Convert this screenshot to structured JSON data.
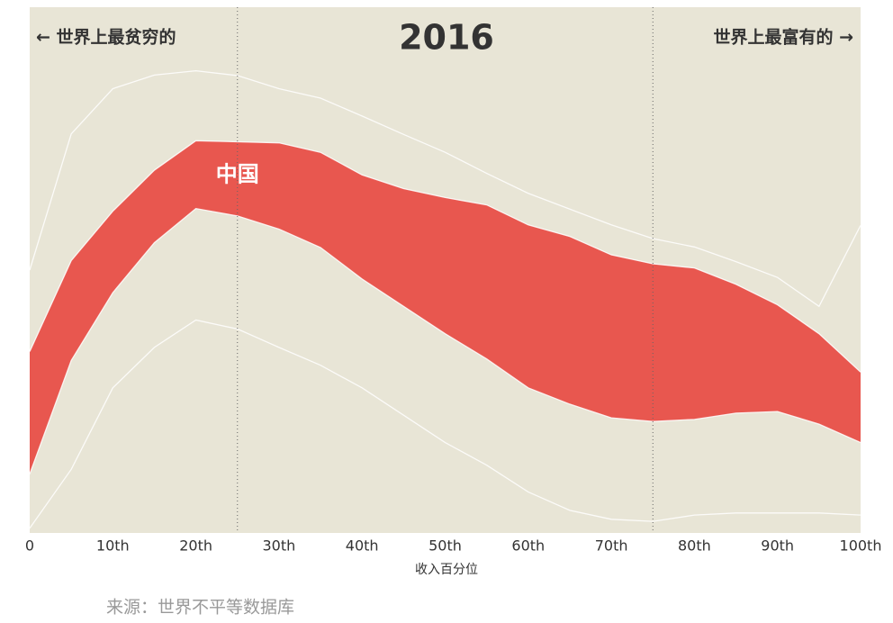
{
  "chart_data": {
    "type": "stacked-area",
    "title": "2016",
    "left_note": "← 世界上最贫穷的",
    "right_note": "世界上最富有的 →",
    "xlabel": "收入百分位",
    "source": "来源：世界不平等数据库",
    "x": [
      0,
      5,
      10,
      15,
      20,
      25,
      30,
      35,
      40,
      45,
      50,
      55,
      60,
      65,
      70,
      75,
      80,
      85,
      90,
      95,
      100
    ],
    "xlim": [
      0,
      100
    ],
    "xticks": [
      0,
      {
        "value": 10,
        "label": "10th"
      },
      {
        "value": 20,
        "label": "20th"
      },
      {
        "value": 30,
        "label": "30th"
      },
      {
        "value": 40,
        "label": "40th"
      },
      {
        "value": 50,
        "label": "50th"
      },
      {
        "value": 60,
        "label": "60th"
      },
      {
        "value": 70,
        "label": "70th"
      },
      {
        "value": 80,
        "label": "80th"
      },
      {
        "value": 90,
        "label": "90th"
      },
      {
        "value": 100,
        "label": "100th"
      }
    ],
    "ylim": [
      0,
      100
    ],
    "vlines": [
      25,
      75
    ],
    "background": "#e8e5d6",
    "series": [
      {
        "color": "#e8e5d6",
        "values": [
          0.9,
          12.1,
          27.6,
          35.3,
          40.5,
          38.8,
          35.3,
          31.9,
          27.6,
          22.4,
          17.2,
          12.9,
          7.8,
          4.3,
          2.6,
          2.2,
          3.4,
          3.8,
          3.8,
          3.8,
          3.4
        ]
      },
      {
        "color": "#e8e5d6",
        "values": [
          10.3,
          20.7,
          18.1,
          19.9,
          21.2,
          21.5,
          22.5,
          22.4,
          20.7,
          20.7,
          20.7,
          20.2,
          19.8,
          20.2,
          19.3,
          19.0,
          18.2,
          19.0,
          19.3,
          16.9,
          13.8
        ]
      },
      {
        "name": "中国",
        "color": "#e8574f",
        "values": [
          23.3,
          19.0,
          15.5,
          13.8,
          12.9,
          14.1,
          16.4,
          18.1,
          19.8,
          22.4,
          25.9,
          29.3,
          31.0,
          31.9,
          31.0,
          30.0,
          28.8,
          24.5,
          20.3,
          17.2,
          13.4
        ]
      },
      {
        "color": "#e8e5d6",
        "values": [
          15.5,
          24.1,
          23.3,
          18.1,
          13.3,
          12.6,
          10.3,
          10.3,
          11.2,
          10.3,
          8.6,
          6.0,
          6.0,
          5.2,
          5.7,
          4.8,
          4.0,
          4.3,
          5.2,
          5.2,
          27.9
        ]
      }
    ]
  }
}
